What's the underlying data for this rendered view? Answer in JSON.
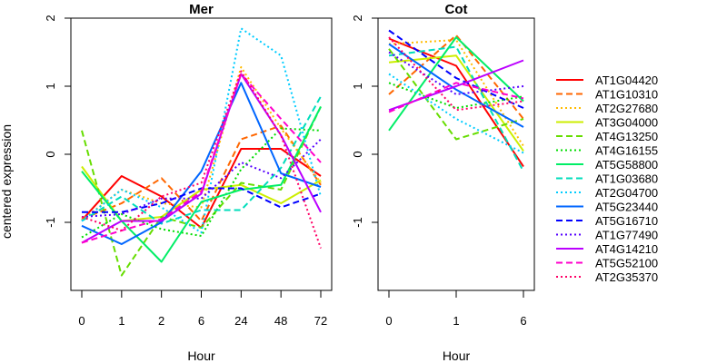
{
  "chart_data": [
    {
      "type": "line",
      "title": "Mer",
      "xlabel": "Hour",
      "ylabel": "centered expression",
      "categories": [
        "0",
        "1",
        "2",
        "6",
        "24",
        "48",
        "72"
      ],
      "ylim": [
        -2,
        2
      ],
      "yticks": [
        "-1",
        "0",
        "1",
        "2"
      ],
      "series": [
        {
          "name": "AT1G04420",
          "values": [
            -0.97,
            -0.32,
            -0.62,
            -1.08,
            0.08,
            0.08,
            -0.32
          ]
        },
        {
          "name": "AT1G10310",
          "values": [
            -0.95,
            -0.72,
            -0.35,
            -0.98,
            0.22,
            0.42,
            -0.45
          ]
        },
        {
          "name": "AT2G27680",
          "values": [
            -0.97,
            -0.52,
            -0.72,
            -0.78,
            1.28,
            0.38,
            -0.42
          ]
        },
        {
          "name": "AT3G04000",
          "values": [
            -0.18,
            -0.98,
            -0.92,
            -0.52,
            -0.45,
            -0.72,
            -0.38
          ]
        },
        {
          "name": "AT4G13250",
          "values": [
            0.35,
            -1.78,
            -0.92,
            -1.08,
            -0.42,
            -0.52,
            0.7
          ]
        },
        {
          "name": "AT4G16155",
          "values": [
            -1.22,
            -0.88,
            -1.1,
            -1.2,
            -0.22,
            0.38,
            0.35
          ]
        },
        {
          "name": "AT5G58800",
          "values": [
            -0.25,
            -0.98,
            -1.58,
            -0.7,
            -0.52,
            -0.45,
            0.7
          ]
        },
        {
          "name": "AT1G03680",
          "values": [
            -0.98,
            -0.62,
            -1.02,
            -0.82,
            -0.82,
            -0.2,
            0.85
          ]
        },
        {
          "name": "AT2G04700",
          "values": [
            -0.98,
            -0.52,
            -0.78,
            -1.15,
            1.85,
            1.45,
            -0.62
          ]
        },
        {
          "name": "AT5G23440",
          "values": [
            -1.05,
            -1.32,
            -1.0,
            -0.25,
            1.05,
            -0.28,
            -0.48
          ]
        },
        {
          "name": "AT5G16710",
          "values": [
            -0.85,
            -0.85,
            -0.72,
            -0.5,
            -0.5,
            -0.78,
            -0.58
          ]
        },
        {
          "name": "AT1G77490",
          "values": [
            -0.92,
            -0.88,
            -0.65,
            -0.65,
            -0.12,
            -0.35,
            0.22
          ]
        },
        {
          "name": "AT4G14210",
          "values": [
            -1.3,
            -0.98,
            -0.98,
            -0.58,
            1.18,
            0.28,
            -0.85
          ]
        },
        {
          "name": "AT5G52100",
          "values": [
            -1.3,
            -1.12,
            -0.95,
            -0.55,
            1.18,
            0.52,
            -0.12
          ]
        },
        {
          "name": "AT2G35370",
          "values": [
            -0.92,
            -1.12,
            -0.62,
            -0.42,
            1.22,
            0.28,
            -1.38
          ]
        }
      ]
    },
    {
      "type": "line",
      "title": "Cot",
      "xlabel": "Hour",
      "ylabel": "",
      "categories": [
        "0",
        "1",
        "6"
      ],
      "ylim": [
        -2,
        2
      ],
      "yticks": [
        "-1",
        "0",
        "1",
        "2"
      ],
      "series": [
        {
          "name": "AT1G04420",
          "values": [
            1.7,
            1.3,
            -0.18
          ]
        },
        {
          "name": "AT1G10310",
          "values": [
            0.88,
            1.75,
            0.52
          ]
        },
        {
          "name": "AT2G27680",
          "values": [
            1.62,
            1.68,
            0.12
          ]
        },
        {
          "name": "AT3G04000",
          "values": [
            1.35,
            1.45,
            0.05
          ]
        },
        {
          "name": "AT4G13250",
          "values": [
            1.55,
            0.22,
            0.52
          ]
        },
        {
          "name": "AT4G16155",
          "values": [
            1.05,
            0.68,
            0.85
          ]
        },
        {
          "name": "AT5G58800",
          "values": [
            0.35,
            1.72,
            0.78
          ]
        },
        {
          "name": "AT1G03680",
          "values": [
            1.45,
            1.58,
            -0.25
          ]
        },
        {
          "name": "AT2G04700",
          "values": [
            1.18,
            0.52,
            0.02
          ]
        },
        {
          "name": "AT5G23440",
          "values": [
            1.62,
            0.95,
            0.4
          ]
        },
        {
          "name": "AT5G16710",
          "values": [
            1.82,
            1.12,
            0.68
          ]
        },
        {
          "name": "AT1G77490",
          "values": [
            1.5,
            0.88,
            1.0
          ]
        },
        {
          "name": "AT4G14210",
          "values": [
            0.65,
            1.0,
            1.38
          ]
        },
        {
          "name": "AT5G52100",
          "values": [
            0.62,
            1.05,
            0.82
          ]
        },
        {
          "name": "AT2G35370",
          "values": [
            1.72,
            0.65,
            0.78
          ]
        }
      ]
    }
  ],
  "legend": {
    "entries": [
      {
        "label": "AT1G04420",
        "color": "#ff0000",
        "dash": "solid"
      },
      {
        "label": "AT1G10310",
        "color": "#ff6600",
        "dash": "dashed"
      },
      {
        "label": "AT2G27680",
        "color": "#ffbb00",
        "dash": "dotted"
      },
      {
        "label": "AT3G04000",
        "color": "#ccee00",
        "dash": "solid"
      },
      {
        "label": "AT4G13250",
        "color": "#66dd00",
        "dash": "dashed"
      },
      {
        "label": "AT4G16155",
        "color": "#00dd00",
        "dash": "dotted"
      },
      {
        "label": "AT5G58800",
        "color": "#00ee66",
        "dash": "solid"
      },
      {
        "label": "AT1G03680",
        "color": "#00ddbb",
        "dash": "dashed"
      },
      {
        "label": "AT2G04700",
        "color": "#00ccff",
        "dash": "dotted"
      },
      {
        "label": "AT5G23440",
        "color": "#0066ff",
        "dash": "solid"
      },
      {
        "label": "AT5G16710",
        "color": "#0000ff",
        "dash": "dashed"
      },
      {
        "label": "AT1G77490",
        "color": "#5500ff",
        "dash": "dotted"
      },
      {
        "label": "AT4G14210",
        "color": "#bb00ff",
        "dash": "solid"
      },
      {
        "label": "AT5G52100",
        "color": "#ff00cc",
        "dash": "dashed"
      },
      {
        "label": "AT2G35370",
        "color": "#ff0066",
        "dash": "dotted"
      }
    ]
  }
}
